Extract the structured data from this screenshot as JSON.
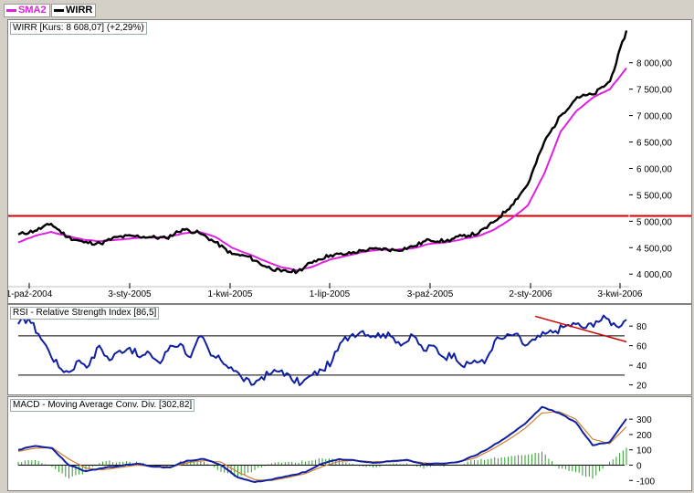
{
  "legend": {
    "sma_label": "SMA2",
    "sma_color": "#e020e0",
    "wirr_label": "WIRR",
    "wirr_color": "#000000"
  },
  "main": {
    "title": "WIRR [Kurs: 8 608,07] (+2,29%)",
    "y_ticks": [
      "4 000,00",
      "4 500,00",
      "5 000,00",
      "5 500,00",
      "6 000,00",
      "6 500,00",
      "7 000,00",
      "7 500,00",
      "8 000,00"
    ],
    "x_ticks": [
      "1-paź-2004",
      "3-sty-2005",
      "1-kwi-2005",
      "1-lip-2005",
      "3-paź-2005",
      "2-sty-2006",
      "3-kwi-2006"
    ]
  },
  "rsi": {
    "title": "RSI - Relative Strength Index [86,5]",
    "y_ticks": [
      "20",
      "40",
      "60",
      "80"
    ]
  },
  "macd": {
    "title": "MACD - Moving Average Conv. Div. [302,82]",
    "y_ticks": [
      "-100",
      "0",
      "100",
      "200",
      "300"
    ]
  },
  "chart_data": [
    {
      "type": "line",
      "title": "WIRR [Kurs: 8 608,07] (+2,29%)",
      "x": [
        "2004-09-20",
        "2004-10-01",
        "2004-10-15",
        "2004-11-01",
        "2004-11-15",
        "2004-12-01",
        "2004-12-15",
        "2005-01-03",
        "2005-01-17",
        "2005-02-01",
        "2005-02-15",
        "2005-03-01",
        "2005-03-15",
        "2005-04-01",
        "2005-04-15",
        "2005-05-01",
        "2005-05-15",
        "2005-06-01",
        "2005-06-15",
        "2005-07-01",
        "2005-07-15",
        "2005-08-01",
        "2005-08-15",
        "2005-09-01",
        "2005-09-15",
        "2005-10-03",
        "2005-10-17",
        "2005-11-01",
        "2005-11-15",
        "2005-12-01",
        "2005-12-15",
        "2006-01-02",
        "2006-01-16",
        "2006-02-01",
        "2006-02-15",
        "2006-03-01",
        "2006-03-15",
        "2006-04-03"
      ],
      "series": [
        {
          "name": "WIRR",
          "color": "#000000",
          "values": [
            4750,
            4820,
            4950,
            4700,
            4600,
            4580,
            4700,
            4720,
            4700,
            4680,
            4850,
            4780,
            4600,
            4380,
            4330,
            4150,
            4050,
            4050,
            4250,
            4360,
            4380,
            4450,
            4480,
            4450,
            4520,
            4650,
            4620,
            4720,
            4770,
            5000,
            5300,
            5700,
            6500,
            7000,
            7350,
            7400,
            7650,
            8608
          ]
        },
        {
          "name": "SMA2",
          "color": "#e020e0",
          "values": [
            4600,
            4720,
            4800,
            4720,
            4650,
            4620,
            4650,
            4680,
            4690,
            4690,
            4770,
            4800,
            4700,
            4500,
            4380,
            4250,
            4130,
            4070,
            4150,
            4280,
            4350,
            4420,
            4460,
            4460,
            4490,
            4570,
            4600,
            4660,
            4720,
            4850,
            5050,
            5300,
            5900,
            6700,
            7100,
            7350,
            7500,
            7900
          ]
        }
      ],
      "hlines": [
        {
          "y": 5100,
          "color": "#cc0000"
        }
      ],
      "ylim": [
        3900,
        8600
      ],
      "x_ticks": [
        "1-paź-2004",
        "3-sty-2005",
        "1-kwi-2005",
        "1-lip-2005",
        "3-paź-2005",
        "2-sty-2006",
        "3-kwi-2006"
      ],
      "grid": false
    },
    {
      "type": "line",
      "title": "RSI - Relative Strength Index [86,5]",
      "x_index": [
        0,
        6,
        12,
        18,
        24,
        30,
        36,
        42,
        48,
        54,
        60,
        66,
        72,
        78,
        84,
        90,
        96,
        102,
        108,
        114,
        120,
        126,
        132,
        138,
        144,
        150,
        156,
        162,
        168,
        174,
        180,
        186,
        192,
        198,
        204,
        210,
        216,
        222,
        228,
        234,
        240,
        246,
        252,
        258,
        264,
        270,
        276,
        282,
        288,
        294,
        300,
        306,
        312,
        318,
        324,
        330,
        336,
        342,
        348,
        354,
        360
      ],
      "series": [
        {
          "name": "RSI",
          "color": "#1020a0",
          "values": [
            82,
            88,
            72,
            55,
            38,
            33,
            45,
            40,
            60,
            45,
            55,
            58,
            48,
            52,
            42,
            60,
            62,
            48,
            70,
            50,
            45,
            38,
            28,
            20,
            28,
            32,
            35,
            25,
            22,
            30,
            35,
            45,
            65,
            72,
            75,
            70,
            72,
            68,
            62,
            70,
            55,
            60,
            48,
            52,
            38,
            45,
            42,
            65,
            68,
            72,
            60,
            66,
            72,
            75,
            80,
            82,
            78,
            85,
            88,
            80,
            86.5
          ]
        }
      ],
      "hlines": [
        {
          "y": 70,
          "color": "#000000"
        },
        {
          "y": 30,
          "color": "#000000"
        }
      ],
      "trendline": {
        "color": "#cc0000",
        "from": [
          306,
          90
        ],
        "to": [
          360,
          64
        ]
      },
      "ylim": [
        14,
        96
      ],
      "grid": false
    },
    {
      "type": "line",
      "title": "MACD - Moving Average Conv. Div. [302,82]",
      "x_index": [
        0,
        10,
        20,
        30,
        40,
        50,
        60,
        70,
        80,
        90,
        100,
        110,
        120,
        130,
        140,
        150,
        160,
        170,
        180,
        190,
        200,
        210,
        220,
        230,
        240,
        250,
        260,
        270,
        280,
        290,
        300,
        310,
        320,
        330,
        340,
        350,
        360
      ],
      "series": [
        {
          "name": "MACD",
          "color": "#1020a0",
          "values": [
            100,
            125,
            110,
            0,
            -40,
            -20,
            -5,
            10,
            -10,
            -15,
            30,
            40,
            0,
            -80,
            -110,
            -95,
            -70,
            -45,
            10,
            40,
            30,
            15,
            25,
            35,
            5,
            10,
            20,
            60,
            120,
            190,
            270,
            380,
            340,
            280,
            130,
            150,
            302
          ]
        },
        {
          "name": "Signal",
          "color": "#d08030",
          "values": [
            90,
            110,
            115,
            40,
            -20,
            -30,
            -15,
            0,
            -5,
            -12,
            15,
            30,
            20,
            -45,
            -95,
            -100,
            -80,
            -55,
            -10,
            25,
            30,
            22,
            22,
            30,
            15,
            12,
            18,
            45,
            100,
            165,
            240,
            340,
            350,
            300,
            170,
            140,
            250
          ]
        }
      ],
      "histogram_color": "#2a9a2a",
      "ylim": [
        -140,
        420
      ],
      "grid": false
    }
  ]
}
